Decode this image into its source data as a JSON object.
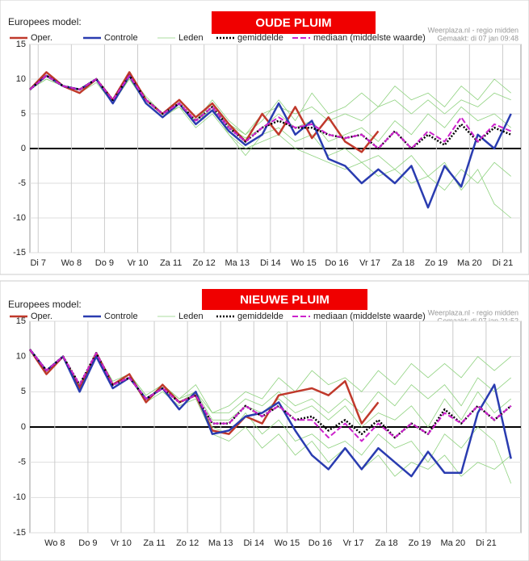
{
  "chart_data": [
    {
      "type": "line",
      "title": "Europees model:",
      "subtitle": "OUDE PLUIM",
      "source": "Weerplaza.nl - regio midden",
      "created": "Gemaakt: di 07 jan 09:48",
      "x": [
        0.25,
        0.75,
        1.25,
        1.75,
        2.25,
        2.75,
        3.25,
        3.75,
        4.25,
        4.75,
        5.25,
        5.75,
        6.25,
        6.75,
        7.25,
        7.75,
        8.25,
        8.75,
        9.25,
        9.75,
        10.25,
        10.75,
        11.25,
        11.75,
        12.25,
        12.75,
        13.25,
        13.75,
        14.25,
        14.75
      ],
      "xlim": [
        0.25,
        15.05
      ],
      "xticks": [
        {
          "value": 0.5,
          "label": "Di 7"
        },
        {
          "value": 1.5,
          "label": "Wo 8"
        },
        {
          "value": 2.5,
          "label": "Do 9"
        },
        {
          "value": 3.5,
          "label": "Vr 10"
        },
        {
          "value": 4.5,
          "label": "Za 11"
        },
        {
          "value": 5.5,
          "label": "Zo 12"
        },
        {
          "value": 6.5,
          "label": "Ma 13"
        },
        {
          "value": 7.5,
          "label": "Di 14"
        },
        {
          "value": 8.5,
          "label": "Wo 15"
        },
        {
          "value": 9.5,
          "label": "Do 16"
        },
        {
          "value": 10.5,
          "label": "Vr 17"
        },
        {
          "value": 11.5,
          "label": "Za 18"
        },
        {
          "value": 12.5,
          "label": "Zo 19"
        },
        {
          "value": 13.5,
          "label": "Ma 20"
        },
        {
          "value": 14.5,
          "label": "Di 21"
        }
      ],
      "ylim": [
        -15,
        15
      ],
      "yticks": [
        15,
        10,
        5,
        0,
        -5,
        -10,
        -15
      ],
      "grid": true,
      "series": [
        {
          "name": "Oper.",
          "color": "#c0392b",
          "style": "solid",
          "values": [
            8.5,
            11,
            9,
            8,
            10,
            7,
            11,
            7,
            5,
            7,
            4.5,
            6.5,
            3.5,
            1,
            5,
            2,
            6,
            1.5,
            4.5,
            1,
            -0.5,
            2.5,
            null,
            null,
            null,
            null,
            null,
            null,
            null,
            null
          ]
        },
        {
          "name": "Controle",
          "color": "#2a3cb0",
          "style": "solid",
          "values": [
            8.5,
            10.5,
            9,
            8.5,
            10,
            6.5,
            10.5,
            6.5,
            4.5,
            6.5,
            3.5,
            5.5,
            2.5,
            0.5,
            2,
            6.5,
            2,
            4,
            -1.5,
            -2.5,
            -5,
            -3,
            -5,
            -2.5,
            -8.5,
            -2.5,
            -5.5,
            2,
            0,
            5
          ]
        },
        {
          "name": "Leden",
          "color": "#8fd27f",
          "style": "thin",
          "values": [
            8.5,
            10.5,
            9,
            8.5,
            10,
            7,
            10,
            7,
            5,
            6,
            4,
            7,
            4,
            2,
            5,
            6,
            5,
            6,
            4,
            5,
            4,
            6,
            7,
            5,
            7,
            5,
            7,
            6,
            8,
            7
          ]
        },
        {
          "name": "Leden",
          "color": "#8fd27f",
          "style": "thin",
          "values": [
            8.5,
            10,
            9,
            8,
            9.5,
            6.5,
            10,
            6.5,
            4.5,
            6,
            3,
            5,
            2,
            0,
            1,
            2,
            0,
            -1,
            -2,
            -3,
            -2,
            -4,
            -3,
            -5,
            -4,
            -6,
            -3,
            -5,
            -2,
            -4
          ]
        },
        {
          "name": "Leden",
          "color": "#8fd27f",
          "style": "thin",
          "values": [
            8.5,
            10.5,
            9,
            8.5,
            10,
            7,
            10.5,
            7.5,
            5,
            7,
            4.5,
            6.5,
            3,
            1.5,
            3,
            5,
            3,
            4,
            1,
            2,
            3,
            1,
            4,
            2,
            5,
            3,
            6,
            4,
            5,
            3
          ]
        },
        {
          "name": "Leden",
          "color": "#8fd27f",
          "style": "thin",
          "values": [
            8.5,
            10,
            9,
            8,
            10,
            7,
            10.5,
            7,
            5,
            6.5,
            3.5,
            6,
            2,
            -1,
            2,
            3,
            1,
            2,
            -1,
            0,
            -2,
            -1,
            -3,
            -1,
            -4,
            -2,
            -6,
            -3,
            -8,
            -10
          ]
        },
        {
          "name": "Leden",
          "color": "#8fd27f",
          "style": "thin",
          "values": [
            8.5,
            10.5,
            9,
            8.5,
            10,
            7,
            10.5,
            7,
            5,
            6.5,
            4,
            6.5,
            3.5,
            2,
            4,
            7,
            4,
            8,
            5,
            6,
            8,
            6,
            9,
            7,
            8,
            6,
            9,
            7,
            10,
            8
          ]
        },
        {
          "name": "gemiddelde",
          "color": "#000000",
          "style": "dotted",
          "values": [
            8.5,
            10.5,
            9,
            8.5,
            10,
            7,
            10.5,
            7,
            5,
            6.5,
            4,
            6,
            3,
            1,
            3,
            4,
            3,
            3,
            2,
            1.5,
            2,
            0,
            2.5,
            0,
            2,
            0.5,
            3.5,
            1,
            3,
            2
          ]
        },
        {
          "name": "mediaan (middelste waarde)",
          "color": "#cc22cc",
          "style": "dashed",
          "values": [
            8.5,
            10.5,
            9,
            8.5,
            10,
            7,
            10.5,
            7,
            5,
            6.5,
            4,
            6,
            3,
            1,
            3,
            4.5,
            3,
            3.5,
            2,
            1.5,
            2,
            0,
            2.5,
            0,
            2.5,
            1,
            4.5,
            1,
            3.5,
            2.5
          ]
        }
      ]
    },
    {
      "type": "line",
      "title": "Europees model:",
      "subtitle": "NIEUWE PLUIM",
      "source": "Weerplaza.nl - regio midden",
      "created": "Gemaakt: di 07 jan 21:52",
      "x": [
        0.75,
        1.25,
        1.75,
        2.25,
        2.75,
        3.25,
        3.75,
        4.25,
        4.75,
        5.25,
        5.75,
        6.25,
        6.75,
        7.25,
        7.75,
        8.25,
        8.75,
        9.25,
        9.75,
        10.25,
        10.75,
        11.25,
        11.75,
        12.25,
        12.75,
        13.25,
        13.75,
        14.25,
        14.75,
        15.25
      ],
      "xlim": [
        0.75,
        15.55
      ],
      "xticks": [
        {
          "value": 1.5,
          "label": "Wo 8"
        },
        {
          "value": 2.5,
          "label": "Do 9"
        },
        {
          "value": 3.5,
          "label": "Vr 10"
        },
        {
          "value": 4.5,
          "label": "Za 11"
        },
        {
          "value": 5.5,
          "label": "Zo 12"
        },
        {
          "value": 6.5,
          "label": "Ma 13"
        },
        {
          "value": 7.5,
          "label": "Di 14"
        },
        {
          "value": 8.5,
          "label": "Wo 15"
        },
        {
          "value": 9.5,
          "label": "Do 16"
        },
        {
          "value": 10.5,
          "label": "Vr 17"
        },
        {
          "value": 11.5,
          "label": "Za 18"
        },
        {
          "value": 12.5,
          "label": "Zo 19"
        },
        {
          "value": 13.5,
          "label": "Ma 20"
        },
        {
          "value": 14.5,
          "label": "Di 21"
        }
      ],
      "ylim": [
        -15,
        15
      ],
      "yticks": [
        15,
        10,
        5,
        0,
        -5,
        -10,
        -15
      ],
      "grid": true,
      "series": [
        {
          "name": "Oper.",
          "color": "#c0392b",
          "style": "solid",
          "values": [
            11,
            7.5,
            10,
            5.5,
            10.5,
            6,
            7.5,
            3.5,
            6,
            3.5,
            4.5,
            -0.5,
            -1,
            1.5,
            0.5,
            4.5,
            5,
            5.5,
            4.5,
            6.5,
            0.5,
            3.5,
            null,
            null,
            null,
            null,
            null,
            null,
            null,
            null
          ]
        },
        {
          "name": "Controle",
          "color": "#2a3cb0",
          "style": "solid",
          "values": [
            11,
            8,
            10,
            5,
            10,
            5.5,
            7,
            4,
            5.5,
            2.5,
            5,
            -1,
            -0.5,
            1.5,
            2,
            3.5,
            -0.5,
            -4,
            -6,
            -3,
            -6,
            -3,
            -5,
            -7,
            -3.5,
            -6.5,
            -6.5,
            2,
            6,
            -4.5
          ]
        },
        {
          "name": "Leden",
          "color": "#8fd27f",
          "style": "thin",
          "values": [
            11,
            8,
            10,
            6,
            10.5,
            6,
            7.5,
            4.5,
            6,
            4,
            6,
            2,
            3,
            5,
            4,
            7,
            5,
            8,
            6,
            7,
            5,
            8,
            6,
            9,
            7,
            9,
            7,
            10,
            8,
            10
          ]
        },
        {
          "name": "Leden",
          "color": "#8fd27f",
          "style": "thin",
          "values": [
            11,
            7.5,
            10,
            5.5,
            10,
            5.5,
            7,
            3.5,
            5,
            3,
            4,
            -1,
            -2,
            0,
            -3,
            -1,
            -4,
            -2,
            -5,
            -3,
            -6,
            -4,
            -7,
            -5,
            -6,
            -4,
            -7,
            -5,
            -6,
            -4
          ]
        },
        {
          "name": "Leden",
          "color": "#8fd27f",
          "style": "thin",
          "values": [
            11,
            8,
            10,
            6,
            10.5,
            6,
            7,
            4,
            5.5,
            3.5,
            5,
            1,
            1,
            3,
            2,
            4,
            2,
            3,
            1,
            3,
            0,
            2,
            1,
            3,
            0,
            4,
            1,
            5,
            2,
            4
          ]
        },
        {
          "name": "Leden",
          "color": "#8fd27f",
          "style": "thin",
          "values": [
            11,
            8,
            10,
            6,
            10.5,
            6,
            7,
            4,
            5.5,
            3.5,
            4.5,
            0,
            -1,
            2,
            -1,
            1,
            -2,
            -1,
            -3,
            -2,
            -4,
            -1,
            -3,
            -2,
            -5,
            -1,
            -3,
            0,
            -2,
            -8
          ]
        },
        {
          "name": "Leden",
          "color": "#8fd27f",
          "style": "thin",
          "values": [
            11,
            8,
            10,
            6,
            10.5,
            6.5,
            7.5,
            4.5,
            6,
            4,
            5,
            2,
            2,
            4,
            3,
            5,
            3,
            4,
            2,
            4,
            2,
            5,
            3,
            6,
            4,
            6,
            3,
            7,
            5,
            7
          ]
        },
        {
          "name": "gemiddelde",
          "color": "#000000",
          "style": "dotted",
          "values": [
            11,
            8,
            10,
            6,
            10.5,
            6,
            7,
            4,
            5.5,
            3.5,
            4.5,
            0.5,
            0.5,
            3,
            1.5,
            3,
            1,
            1.5,
            -0.5,
            1,
            -1,
            1,
            -1.5,
            0.5,
            -1,
            2.5,
            0.5,
            3,
            1,
            3
          ]
        },
        {
          "name": "mediaan (middelste waarde)",
          "color": "#cc22cc",
          "style": "dashed",
          "values": [
            11,
            8,
            10,
            6,
            10.5,
            6,
            7,
            4,
            5.5,
            3.5,
            4.5,
            0.5,
            0.5,
            3,
            1.5,
            3,
            1,
            1,
            -1.5,
            0.5,
            -2,
            0.5,
            -1.5,
            0.5,
            -1,
            2,
            0.5,
            3,
            1,
            3
          ]
        }
      ]
    }
  ]
}
